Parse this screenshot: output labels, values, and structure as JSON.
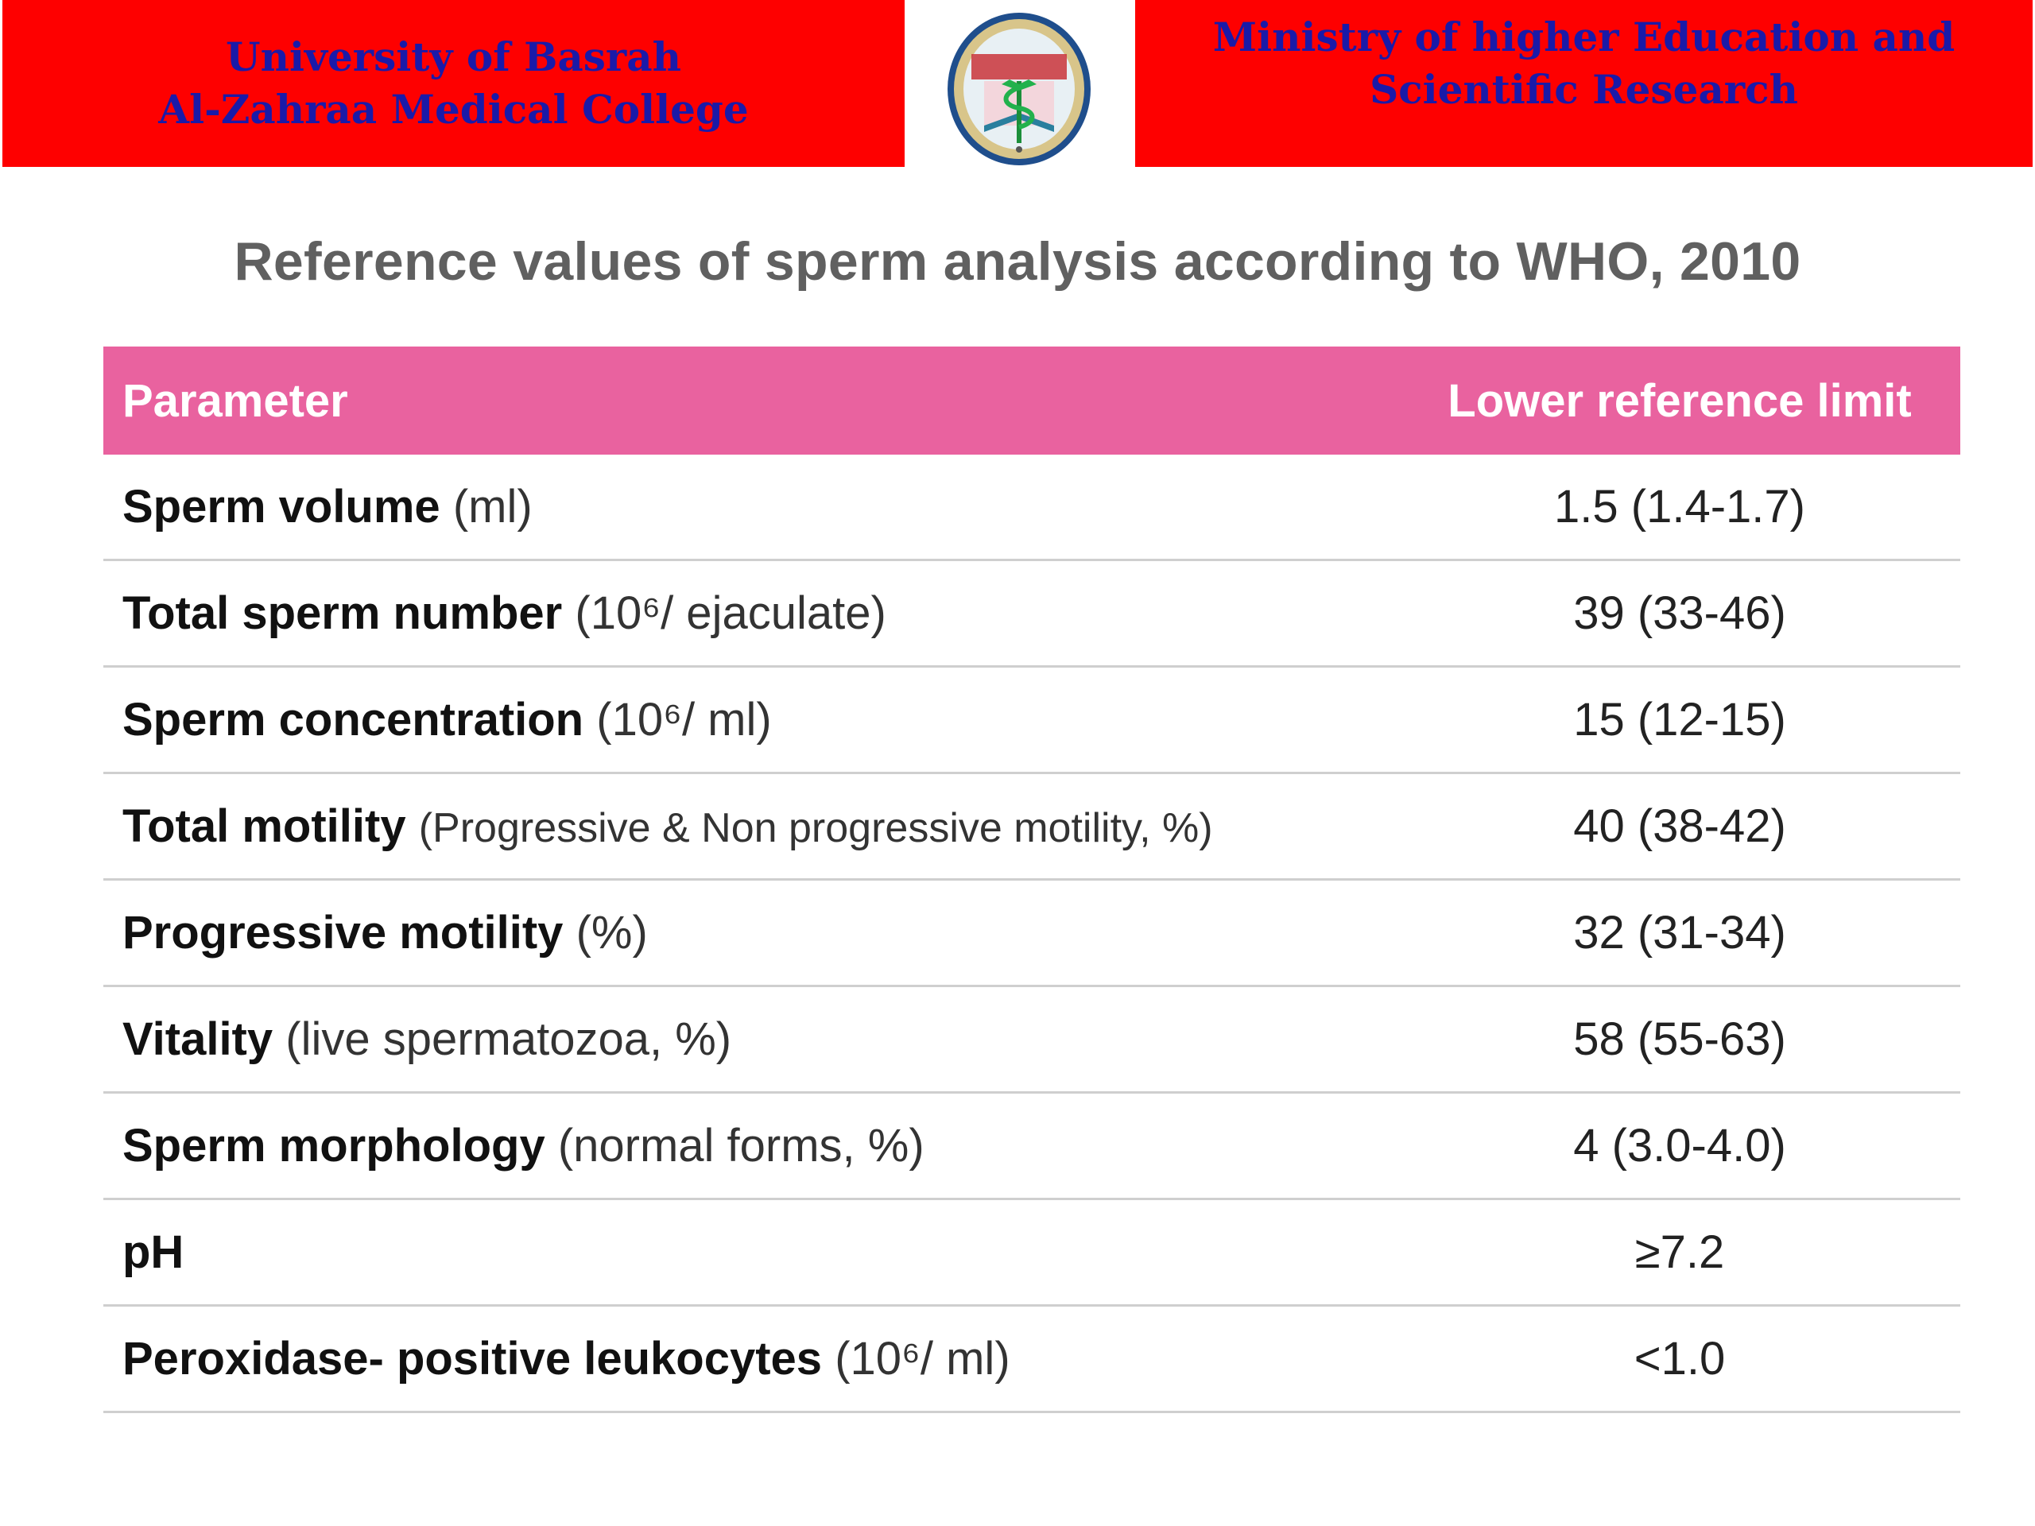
{
  "header": {
    "left_line1": "University of Basrah",
    "left_line2": "Al-Zahraa Medical College",
    "right_line1": "Ministry of higher Education  and",
    "right_line2": "Scientific Research",
    "colors": {
      "banner": "#fe0000",
      "banner_text": "#1a1aa8"
    },
    "logo_icon": "college-seal-logo"
  },
  "title": "Reference values of sperm analysis according to WHO, 2010",
  "table": {
    "header_color": "#e9629f",
    "columns": [
      "Parameter",
      "Lower reference limit"
    ],
    "rows": [
      {
        "name": "Sperm volume",
        "unit": "(ml)",
        "value": "1.5 (1.4-1.7)"
      },
      {
        "name": "Total sperm number",
        "unit": "(10⁶/ ejaculate)",
        "value": "39 (33-46)"
      },
      {
        "name": "Sperm concentration",
        "unit": "(10⁶/ ml)",
        "value": "15 (12-15)"
      },
      {
        "name": "Total motility",
        "unit": "(Progressive & Non progressive motility, %)",
        "value": "40 (38-42)"
      },
      {
        "name": "Progressive motility",
        "unit": "(%)",
        "value": "32 (31-34)"
      },
      {
        "name": "Vitality",
        "unit": "(live spermatozoa, %)",
        "value": "58 (55-63)"
      },
      {
        "name": "Sperm morphology",
        "unit": "(normal forms, %)",
        "value": "4 (3.0-4.0)"
      },
      {
        "name": "pH",
        "unit": "",
        "value": "≥7.2"
      },
      {
        "name": "Peroxidase- positive leukocytes",
        "unit": "(10⁶/ ml)",
        "value": "<1.0"
      }
    ]
  }
}
